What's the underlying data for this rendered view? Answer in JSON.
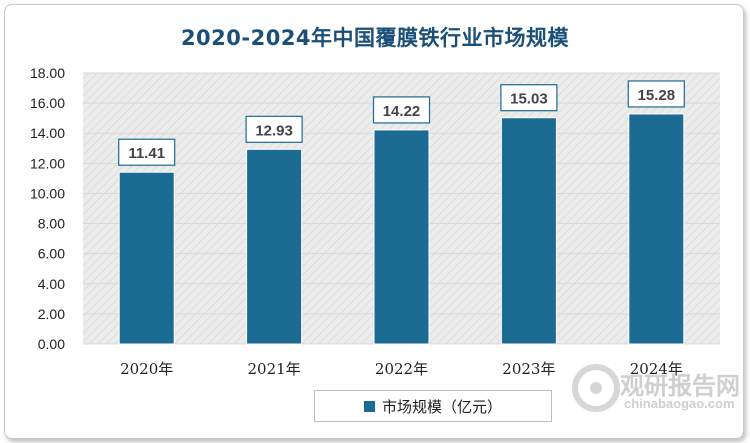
{
  "chart_data": {
    "type": "bar",
    "title": "2020-2024年中国覆膜铁行业市场规模",
    "categories": [
      "2020年",
      "2021年",
      "2022年",
      "2023年",
      "2024年"
    ],
    "series": [
      {
        "name": "市场规模（亿元）",
        "values": [
          11.41,
          12.93,
          14.22,
          15.03,
          15.28
        ]
      }
    ],
    "value_labels": [
      "11.41",
      "12.93",
      "14.22",
      "15.03",
      "15.28"
    ],
    "ylim": [
      0,
      18
    ],
    "yticks": [
      "0.00",
      "2.00",
      "4.00",
      "6.00",
      "8.00",
      "10.00",
      "12.00",
      "14.00",
      "16.00",
      "18.00"
    ],
    "ytick_values": [
      0,
      2,
      4,
      6,
      8,
      10,
      12,
      14,
      16,
      18
    ],
    "xlabel": "",
    "ylabel": "",
    "grid": true,
    "legend": "bottom",
    "bar_color": "#1b6b92",
    "grid_color": "#d9d9d9"
  },
  "watermark": {
    "cn": "观研报告网",
    "en": "chinabaogao.com"
  }
}
